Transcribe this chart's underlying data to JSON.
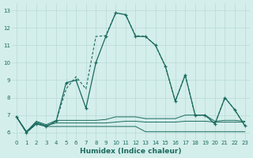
{
  "xlabel": "Humidex (Indice chaleur)",
  "bg_color": "#d4eeeb",
  "grid_color": "#b8dbd8",
  "line_color": "#1a6b5e",
  "xlim": [
    -0.5,
    23.5
  ],
  "ylim": [
    5.6,
    13.4
  ],
  "yticks": [
    6,
    7,
    8,
    9,
    10,
    11,
    12,
    13
  ],
  "xticks": [
    0,
    1,
    2,
    3,
    4,
    5,
    6,
    7,
    8,
    9,
    10,
    11,
    12,
    13,
    14,
    15,
    16,
    17,
    18,
    19,
    20,
    21,
    22,
    23
  ],
  "series_marked": [
    6.9,
    6.0,
    6.5,
    6.35,
    6.65,
    8.85,
    9.0,
    7.4,
    10.0,
    11.5,
    12.85,
    12.75,
    11.5,
    11.5,
    11.0,
    9.8,
    7.8,
    9.3,
    7.0,
    7.0,
    6.5,
    8.0,
    7.3,
    6.4
  ],
  "series_smooth": [
    6.9,
    6.0,
    6.5,
    6.35,
    6.65,
    8.5,
    9.2,
    8.5,
    11.5,
    11.55,
    12.85,
    12.75,
    11.55,
    11.5,
    11.0,
    9.8,
    7.8,
    9.3,
    7.0,
    7.0,
    6.5,
    8.0,
    7.3,
    6.4
  ],
  "series_flat1": [
    6.9,
    6.05,
    6.55,
    6.35,
    6.35,
    6.35,
    6.35,
    6.35,
    6.35,
    6.35,
    6.35,
    6.35,
    6.35,
    6.05,
    6.05,
    6.05,
    6.05,
    6.05,
    6.05,
    6.05,
    6.05,
    6.05,
    6.05,
    6.05
  ],
  "series_flat2": [
    6.9,
    6.05,
    6.6,
    6.4,
    6.55,
    6.55,
    6.55,
    6.55,
    6.55,
    6.55,
    6.6,
    6.65,
    6.65,
    6.6,
    6.6,
    6.6,
    6.6,
    6.65,
    6.65,
    6.65,
    6.6,
    6.6,
    6.6,
    6.6
  ],
  "series_flat3": [
    6.9,
    6.05,
    6.65,
    6.45,
    6.7,
    6.7,
    6.7,
    6.7,
    6.7,
    6.75,
    6.9,
    6.9,
    6.9,
    6.8,
    6.8,
    6.8,
    6.8,
    7.0,
    7.0,
    7.0,
    6.65,
    6.7,
    6.7,
    6.65
  ]
}
